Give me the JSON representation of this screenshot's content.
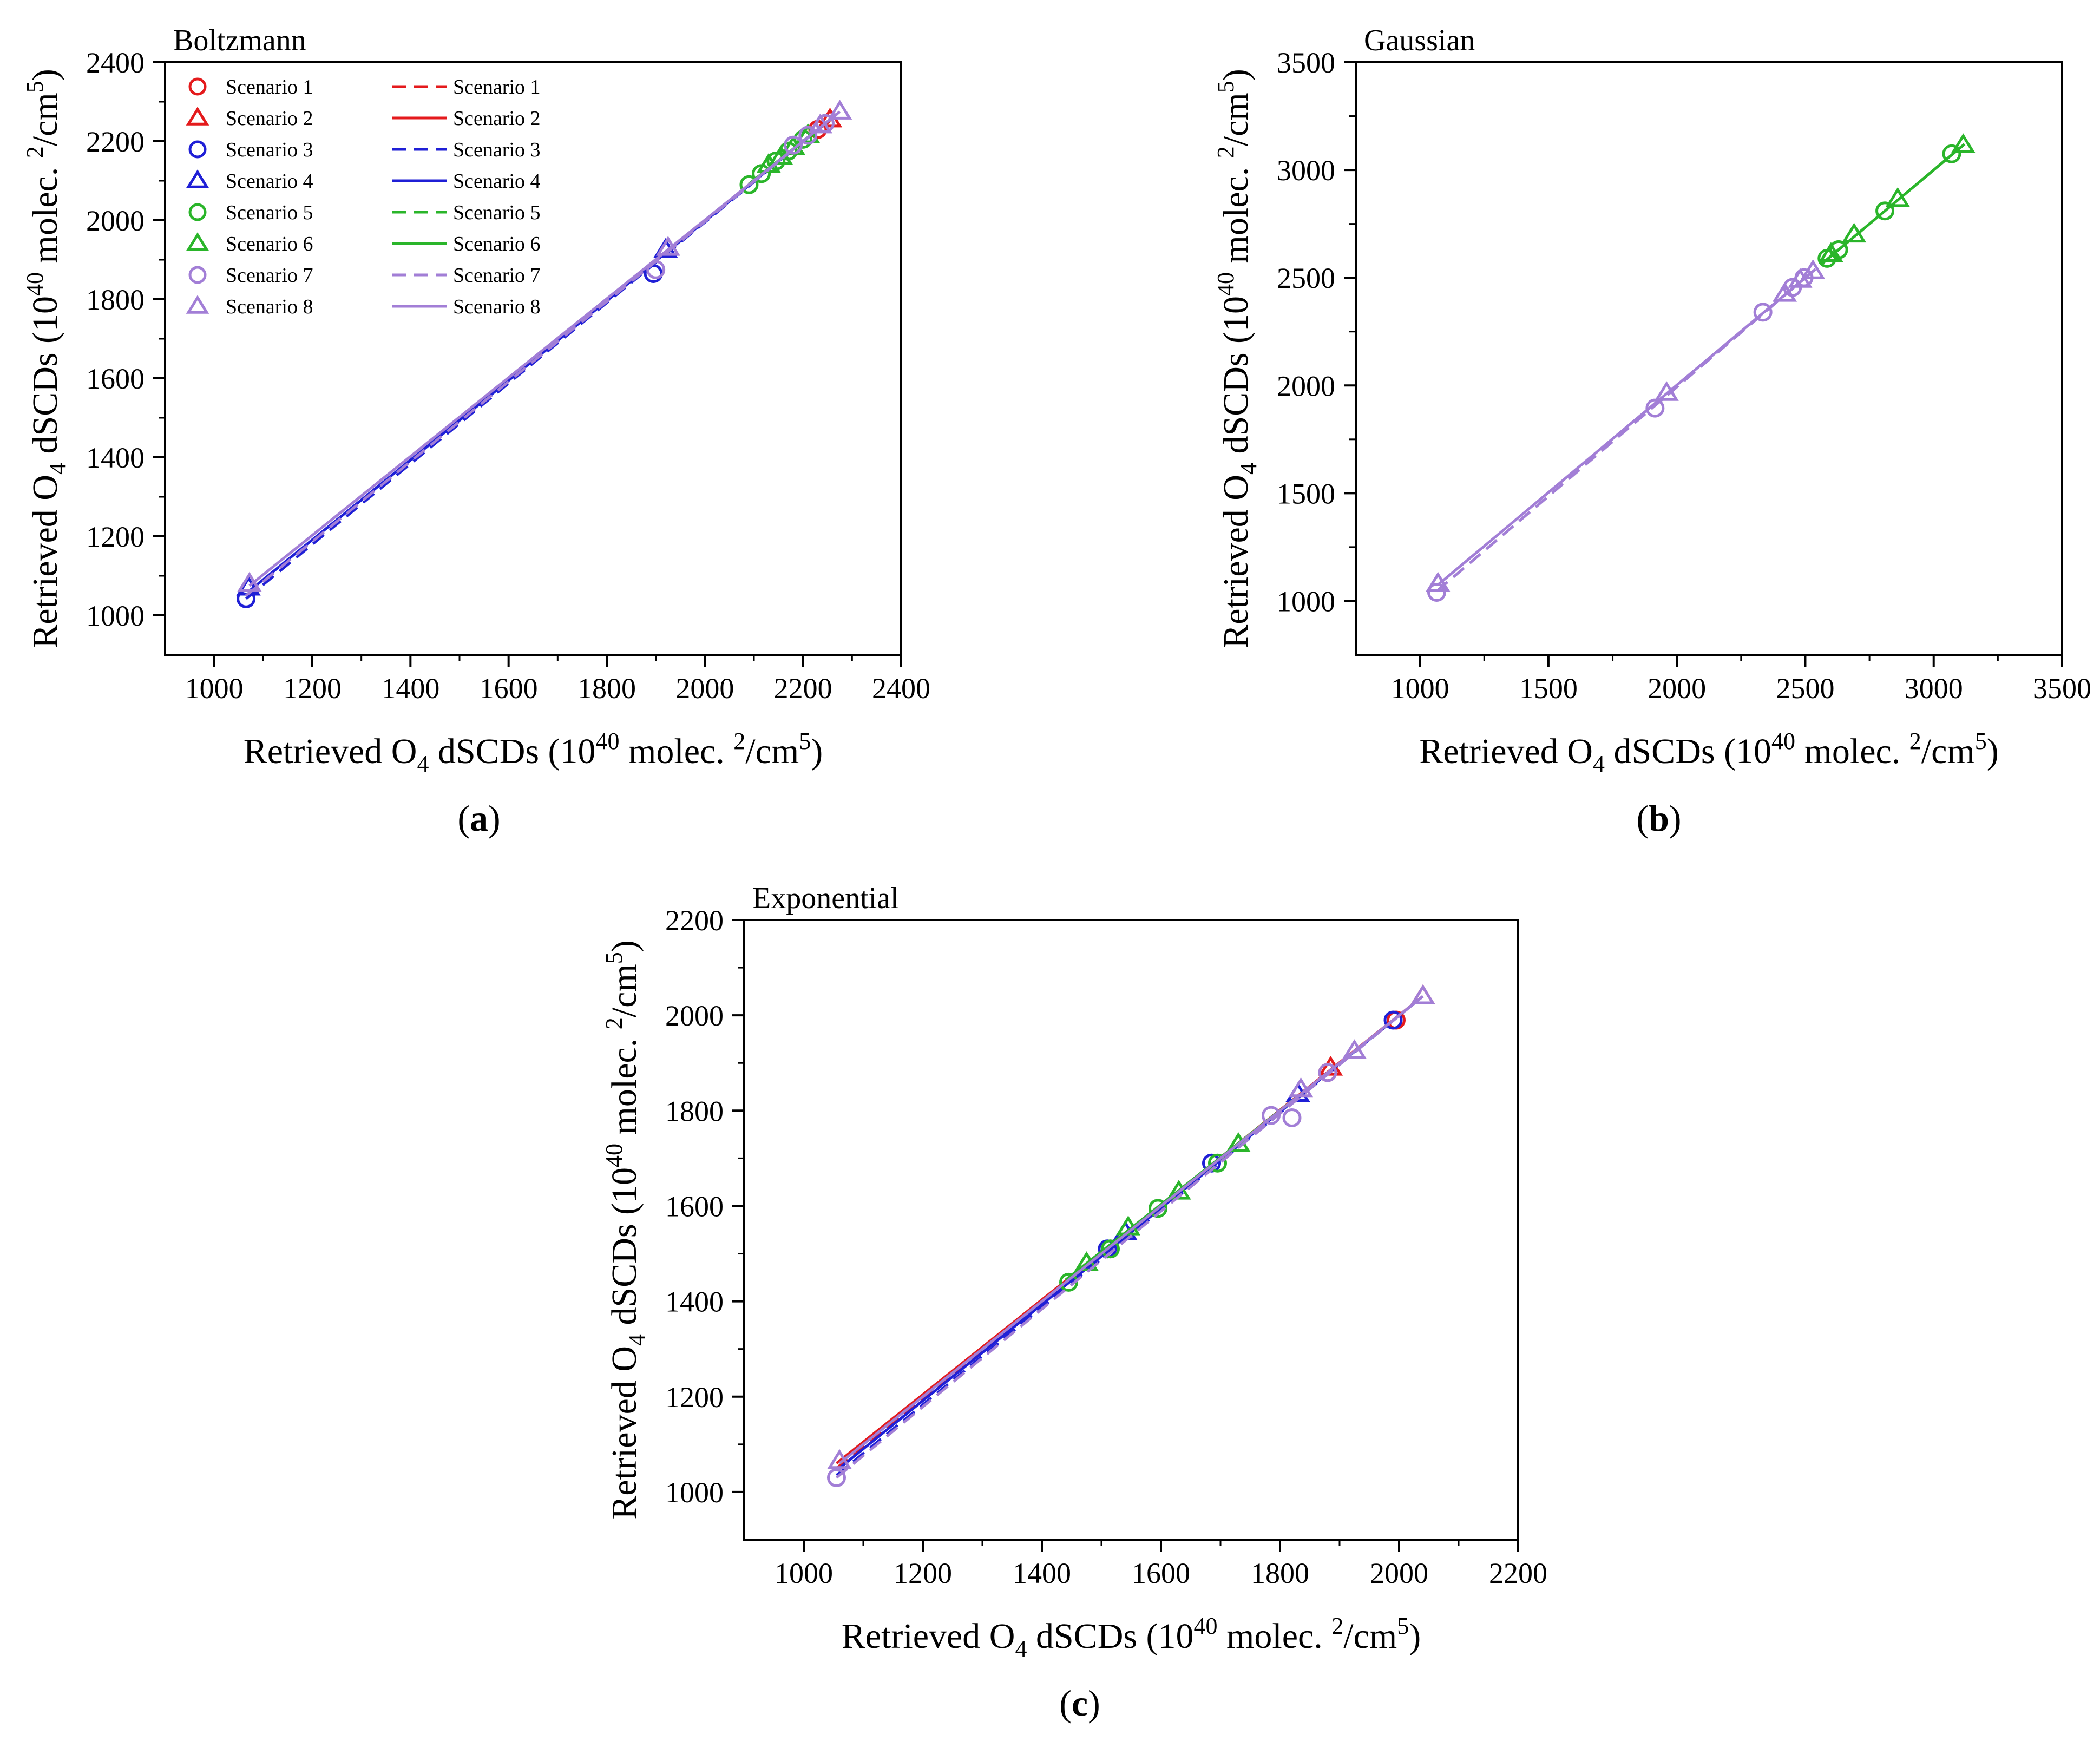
{
  "figure": {
    "panels": [
      "a",
      "b",
      "c"
    ]
  },
  "chart_data": [
    {
      "id": "a",
      "type": "scatter",
      "panel_label": "(a)",
      "title": "Boltzmann",
      "xlabel": {
        "prefix": "Retrieved O",
        "sub": "4",
        "mid": " dSCDs (10",
        "sup1": "40",
        "mid2": " molec. ",
        "sup2": "2",
        "suffix": "/cm",
        "sup3": "5",
        "end": ")"
      },
      "ylabel": {
        "prefix": "Retrieved O",
        "sub": "4",
        "mid": " dSCDs (10",
        "sup1": "40",
        "mid2": " molec. ",
        "sup2": "2",
        "suffix": "/cm",
        "sup3": "5",
        "end": ")"
      },
      "xlim": [
        900,
        2400
      ],
      "ylim": [
        900,
        2400
      ],
      "xticks": [
        "1000",
        "1200",
        "1400",
        "1600",
        "1800",
        "2000",
        "2200",
        "2400"
      ],
      "yticks": [
        "1000",
        "1200",
        "1400",
        "1600",
        "1800",
        "2000",
        "2200",
        "2400"
      ],
      "grid": false,
      "legend": {
        "position": "top-left",
        "marker_labels": [
          "Scenario 1",
          "Scenario 2",
          "Scenario 3",
          "Scenario 4",
          "Scenario 5",
          "Scenario 6",
          "Scenario 7",
          "Scenario 8"
        ],
        "line_labels": [
          "Scenario 1",
          "Scenario 2",
          "Scenario 3",
          "Scenario 4",
          "Scenario 5",
          "Scenario 6",
          "Scenario 7",
          "Scenario 8"
        ]
      },
      "series": [
        {
          "name": "Scenario 1",
          "marker": "circle",
          "color": "#e41a1c",
          "points": [
            [
              2230,
              2230
            ]
          ],
          "fit": {
            "dash": true,
            "x": [
              2230,
              2260
            ],
            "y": [
              2230,
              2255
            ]
          }
        },
        {
          "name": "Scenario 2",
          "marker": "triangle",
          "color": "#e41a1c",
          "points": [
            [
              2255,
              2255
            ]
          ],
          "fit": {
            "dash": false,
            "x": [
              2230,
              2260
            ],
            "y": [
              2230,
              2258
            ]
          }
        },
        {
          "name": "Scenario 3",
          "marker": "circle",
          "color": "#1f1fd6",
          "points": [
            [
              1065,
              1042
            ],
            [
              1895,
              1865
            ]
          ],
          "fit": {
            "dash": true,
            "x": [
              1065,
              2270
            ],
            "y": [
              1042,
              2270
            ]
          }
        },
        {
          "name": "Scenario 4",
          "marker": "triangle",
          "color": "#1f1fd6",
          "points": [
            [
              1070,
              1070
            ],
            [
              1920,
              1925
            ]
          ],
          "fit": {
            "dash": false,
            "x": [
              1070,
              2270
            ],
            "y": [
              1060,
              2270
            ]
          }
        },
        {
          "name": "Scenario 5",
          "marker": "circle",
          "color": "#2ab52a",
          "points": [
            [
              2090,
              2090
            ],
            [
              2115,
              2118
            ],
            [
              2145,
              2150
            ],
            [
              2170,
              2175
            ],
            [
              2200,
              2205
            ]
          ],
          "fit": {
            "dash": true,
            "x": [
              2090,
              2210
            ],
            "y": [
              2090,
              2210
            ]
          }
        },
        {
          "name": "Scenario 6",
          "marker": "triangle",
          "color": "#2ab52a",
          "points": [
            [
              2130,
              2140
            ],
            [
              2155,
              2160
            ],
            [
              2180,
              2185
            ],
            [
              2210,
              2215
            ]
          ],
          "fit": {
            "dash": false,
            "x": [
              2090,
              2215
            ],
            "y": [
              2092,
              2215
            ]
          }
        },
        {
          "name": "Scenario 7",
          "marker": "circle",
          "color": "#a27ed6",
          "points": [
            [
              1900,
              1875
            ],
            [
              2180,
              2190
            ],
            [
              2210,
              2215
            ],
            [
              2245,
              2245
            ]
          ],
          "fit": {
            "dash": true,
            "x": [
              1065,
              2270
            ],
            "y": [
              1050,
              2270
            ]
          }
        },
        {
          "name": "Scenario 8",
          "marker": "triangle",
          "color": "#a27ed6",
          "points": [
            [
              1072,
              1080
            ],
            [
              1925,
              1930
            ],
            [
              2235,
              2240
            ],
            [
              2275,
              2275
            ]
          ],
          "fit": {
            "dash": false,
            "x": [
              1072,
              2275
            ],
            "y": [
              1075,
              2275
            ]
          }
        }
      ]
    },
    {
      "id": "b",
      "type": "scatter",
      "panel_label": "(b)",
      "title": "Gaussian",
      "xlabel": {
        "prefix": "Retrieved O",
        "sub": "4",
        "mid": " dSCDs (10",
        "sup1": "40",
        "mid2": " molec. ",
        "sup2": "2",
        "suffix": "/cm",
        "sup3": "5",
        "end": ")"
      },
      "ylabel": {
        "prefix": "Retrieved O",
        "sub": "4",
        "mid": " dSCDs (10",
        "sup1": "40",
        "mid2": " molec. ",
        "sup2": "2",
        "suffix": "/cm",
        "sup3": "5",
        "end": ")"
      },
      "xlim": [
        750,
        3500
      ],
      "ylim": [
        750,
        3500
      ],
      "xticks": [
        "1000",
        "1500",
        "2000",
        "2500",
        "3000",
        "3500"
      ],
      "yticks": [
        "1000",
        "1500",
        "2000",
        "2500",
        "3000",
        "3500"
      ],
      "grid": false,
      "series": [
        {
          "name": "Scenario 5",
          "marker": "circle",
          "color": "#2ab52a",
          "points": [
            [
              2585,
              2590
            ],
            [
              2630,
              2630
            ],
            [
              2810,
              2810
            ],
            [
              3070,
              3075
            ]
          ],
          "fit": {
            "dash": true,
            "x": [
              2560,
              3110
            ],
            "y": [
              2560,
              3110
            ]
          }
        },
        {
          "name": "Scenario 6",
          "marker": "triangle",
          "color": "#2ab52a",
          "points": [
            [
              2600,
              2610
            ],
            [
              2690,
              2700
            ],
            [
              2860,
              2865
            ],
            [
              3115,
              3115
            ]
          ],
          "fit": {
            "dash": false,
            "x": [
              2560,
              3120
            ],
            "y": [
              2560,
              3120
            ]
          }
        },
        {
          "name": "Scenario 7",
          "marker": "circle",
          "color": "#a27ed6",
          "points": [
            [
              1065,
              1040
            ],
            [
              1915,
              1895
            ],
            [
              2335,
              2340
            ],
            [
              2450,
              2455
            ],
            [
              2495,
              2500
            ]
          ],
          "fit": {
            "dash": true,
            "x": [
              1065,
              2540
            ],
            "y": [
              1045,
              2540
            ]
          }
        },
        {
          "name": "Scenario 8",
          "marker": "triangle",
          "color": "#a27ed6",
          "points": [
            [
              1070,
              1080
            ],
            [
              1960,
              1965
            ],
            [
              2420,
              2425
            ],
            [
              2480,
              2490
            ],
            [
              2530,
              2530
            ]
          ],
          "fit": {
            "dash": false,
            "x": [
              1070,
              2540
            ],
            "y": [
              1075,
              2540
            ]
          }
        }
      ]
    },
    {
      "id": "c",
      "type": "scatter",
      "panel_label": "(c)",
      "title": "Exponential",
      "xlabel": {
        "prefix": "Retrieved O",
        "sub": "4",
        "mid": " dSCDs (10",
        "sup1": "40",
        "mid2": " molec. ",
        "sup2": "2",
        "suffix": "/cm",
        "sup3": "5",
        "end": ")"
      },
      "ylabel": {
        "prefix": "Retrieved O",
        "sub": "4",
        "mid": " dSCDs (10",
        "sup1": "40",
        "mid2": " molec. ",
        "sup2": "2",
        "suffix": "/cm",
        "sup3": "5",
        "end": ")"
      },
      "xlim": [
        900,
        2200
      ],
      "ylim": [
        900,
        2200
      ],
      "xticks": [
        "1000",
        "1200",
        "1400",
        "1600",
        "1800",
        "2000",
        "2200"
      ],
      "yticks": [
        "1000",
        "1200",
        "1400",
        "1600",
        "1800",
        "2000",
        "2200"
      ],
      "grid": false,
      "series": [
        {
          "name": "Scenario 1",
          "marker": "circle",
          "color": "#e41a1c",
          "points": [
            [
              1880,
              1880
            ],
            [
              1995,
              1990
            ]
          ],
          "fit": {
            "dash": true,
            "x": [
              1055,
              2040
            ],
            "y": [
              1050,
              2040
            ]
          }
        },
        {
          "name": "Scenario 2",
          "marker": "triangle",
          "color": "#e41a1c",
          "points": [
            [
              1885,
              1890
            ],
            [
              2040,
              2040
            ]
          ],
          "fit": {
            "dash": false,
            "x": [
              1055,
              2040
            ],
            "y": [
              1060,
              2040
            ]
          }
        },
        {
          "name": "Scenario 3",
          "marker": "circle",
          "color": "#1f1fd6",
          "points": [
            [
              1510,
              1510
            ],
            [
              1685,
              1690
            ],
            [
              1990,
              1990
            ]
          ],
          "fit": {
            "dash": true,
            "x": [
              1055,
              2040
            ],
            "y": [
              1035,
              2040
            ]
          }
        },
        {
          "name": "Scenario 4",
          "marker": "triangle",
          "color": "#1f1fd6",
          "points": [
            [
              1540,
              1545
            ],
            [
              1830,
              1835
            ]
          ],
          "fit": {
            "dash": false,
            "x": [
              1055,
              2040
            ],
            "y": [
              1045,
              2040
            ]
          }
        },
        {
          "name": "Scenario 5",
          "marker": "circle",
          "color": "#2ab52a",
          "points": [
            [
              1445,
              1440
            ],
            [
              1515,
              1510
            ],
            [
              1595,
              1595
            ],
            [
              1695,
              1690
            ]
          ],
          "fit": {
            "dash": true,
            "x": [
              1440,
              1840
            ],
            "y": [
              1440,
              1840
            ]
          }
        },
        {
          "name": "Scenario 6",
          "marker": "triangle",
          "color": "#2ab52a",
          "points": [
            [
              1475,
              1480
            ],
            [
              1545,
              1555
            ],
            [
              1630,
              1630
            ],
            [
              1730,
              1730
            ]
          ],
          "fit": {
            "dash": false,
            "x": [
              1440,
              1840
            ],
            "y": [
              1445,
              1840
            ]
          }
        },
        {
          "name": "Scenario 7",
          "marker": "circle",
          "color": "#a27ed6",
          "points": [
            [
              1055,
              1030
            ],
            [
              1785,
              1790
            ],
            [
              1820,
              1785
            ],
            [
              1880,
              1880
            ]
          ],
          "fit": {
            "dash": true,
            "x": [
              1055,
              2040
            ],
            "y": [
              1030,
              2040
            ]
          }
        },
        {
          "name": "Scenario 8",
          "marker": "triangle",
          "color": "#a27ed6",
          "points": [
            [
              1060,
              1065
            ],
            [
              1835,
              1845
            ],
            [
              1925,
              1925
            ],
            [
              2040,
              2040
            ]
          ],
          "fit": {
            "dash": false,
            "x": [
              1060,
              2040
            ],
            "y": [
              1060,
              2040
            ]
          }
        }
      ]
    }
  ]
}
